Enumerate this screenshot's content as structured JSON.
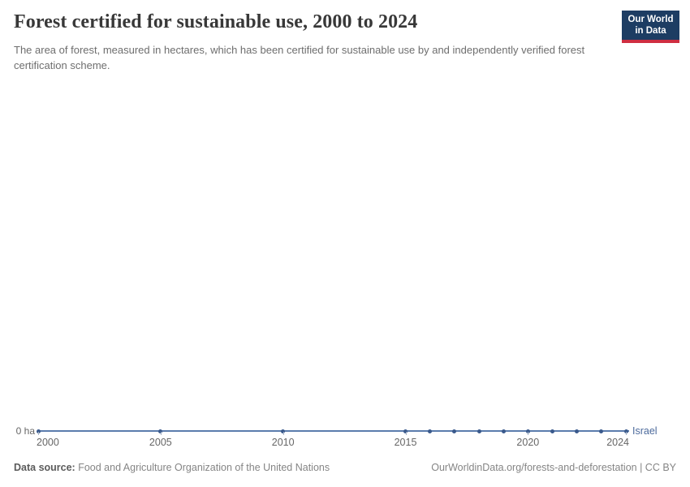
{
  "header": {
    "title": "Forest certified for sustainable use, 2000 to 2024",
    "subtitle": "The area of forest, measured in hectares, which has been certified for sustainable use by and independently verified forest certification scheme."
  },
  "logo": {
    "line1": "Our World",
    "line2": "in Data"
  },
  "chart": {
    "y_axis_label": "0 ha",
    "entity_label": "Israel",
    "x_tick_labels": [
      "2000",
      "2005",
      "2010",
      "2015",
      "2020",
      "2024"
    ]
  },
  "chart_data": {
    "type": "line",
    "title": "Forest certified for sustainable use, 2000 to 2024",
    "x": [
      2000,
      2005,
      2010,
      2015,
      2016,
      2017,
      2018,
      2019,
      2020,
      2021,
      2022,
      2023,
      2024
    ],
    "series": [
      {
        "name": "Israel",
        "values": [
          0,
          0,
          0,
          0,
          0,
          0,
          0,
          0,
          0,
          0,
          0,
          0,
          0
        ]
      }
    ],
    "unit": "ha",
    "xlabel": "",
    "ylabel": "",
    "xlim": [
      2000,
      2024
    ],
    "x_ticks": [
      2000,
      2005,
      2010,
      2015,
      2020,
      2024
    ],
    "y_ticks": [
      "0 ha"
    ],
    "grid": false,
    "legend_position": "line-end-right"
  },
  "colors": {
    "line": "#5b7cad",
    "marker": "#3a5a8c",
    "entity_text": "#4c6a9c",
    "logo_bg": "#1d3d63",
    "logo_bar": "#cf2e41"
  },
  "footer": {
    "source_label": "Data source:",
    "source_text": " Food and Agriculture Organization of the United Nations",
    "right_text": "OurWorldinData.org/forests-and-deforestation | CC BY"
  }
}
